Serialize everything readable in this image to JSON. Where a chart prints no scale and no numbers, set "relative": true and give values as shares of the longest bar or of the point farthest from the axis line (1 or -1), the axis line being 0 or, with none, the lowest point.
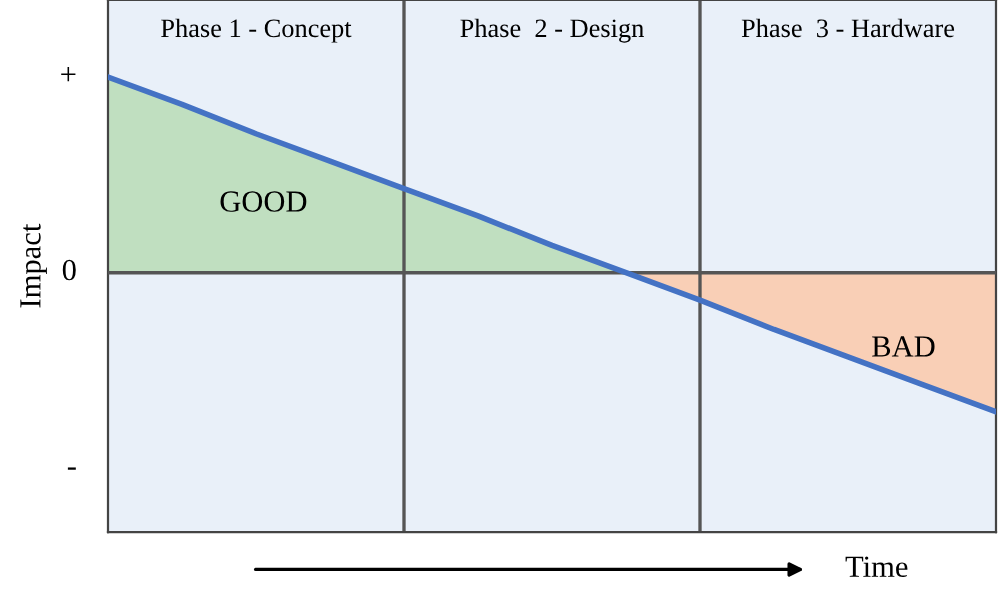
{
  "chart_data": {
    "type": "line",
    "relative": true,
    "xlabel": "Time",
    "ylabel": "Impact",
    "categories": [
      null,
      null,
      null,
      null,
      null,
      null,
      null,
      null,
      null,
      null,
      null,
      null,
      null
    ],
    "series": [
      {
        "type": "area",
        "name": "GOOD",
        "color": "#c0dfc0",
        "values": [
          1,
          0.86,
          0.71,
          0.57,
          0.43,
          0.29,
          0.14,
          0,
          null,
          null,
          null,
          null,
          null
        ]
      },
      {
        "type": "area",
        "name": "BAD",
        "color": "#f9cfb6",
        "values": [
          null,
          null,
          null,
          null,
          null,
          null,
          null,
          0,
          -0.14,
          -0.29,
          -0.43,
          -0.57,
          -0.71
        ]
      },
      {
        "color": "#4472c4",
        "values": [
          1,
          0.86,
          0.71,
          0.57,
          0.43,
          0.29,
          0.14,
          0,
          -0.14,
          -0.29,
          -0.43,
          -0.57,
          -0.71
        ]
      }
    ],
    "annotations": [
      "Phase 1 - Concept",
      "Phase  2 - Design",
      "Phase  3 - Hardware",
      "+",
      "0",
      "-"
    ],
    "grid": false,
    "legend": false
  }
}
